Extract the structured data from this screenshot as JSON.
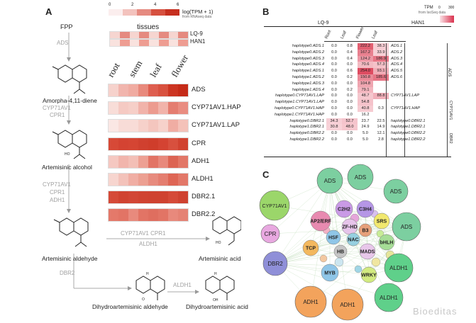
{
  "panel_a": {
    "letter": "A",
    "legend": {
      "ticks": [
        "0",
        "2",
        "4",
        "6"
      ],
      "title": "log(TPM + 1)",
      "subtitle": "from RNAseq data",
      "colors": [
        "#fbeeee",
        "#f3c2bd",
        "#e58a80",
        "#d6503f",
        "#c62f1f"
      ]
    },
    "tissues_title": "tissues",
    "tissues": [
      "root",
      "stem",
      "leaf",
      "flower"
    ],
    "species_rows": [
      {
        "name": "LQ-9",
        "colors": [
          "#f6d5d0",
          "#e58a80",
          "#f6d5d0",
          "#e58a80",
          "#f6d5d0",
          "#e58a80",
          "#f6d5d0",
          "#e58a80"
        ]
      },
      {
        "name": "HAN1",
        "colors": [
          "#f9e2de",
          "#ee9d92",
          "#f9e2de",
          "#ee9d92",
          "#f9e2de",
          "#ee9d92",
          "#f9e2de",
          "#ee9d92"
        ]
      }
    ],
    "genes": [
      {
        "name": "ADS",
        "colors": [
          "#f6d2cc",
          "#f1b5ad",
          "#f0aba1",
          "#e8897c",
          "#de5e4f",
          "#d8513f",
          "#cc3522",
          "#c52b18"
        ]
      },
      {
        "name": "CYP71AV1.HAP",
        "colors": [
          "#f8ddd8",
          "#f5cac3",
          "#f6cfc8",
          "#f1b3aa",
          "#ec9b8f",
          "#f1b3aa",
          "#e47d70",
          "#e98d81"
        ]
      },
      {
        "name": "CYP71AV1.LAP",
        "colors": [
          "#fae7e4",
          "#f8dcd7",
          "#f8dcd7",
          "#f6d1ca",
          "#f4c6be",
          "#f6d1ca",
          "#f0ada3",
          "#f4c2b9"
        ]
      },
      {
        "name": "CPR",
        "colors": [
          "#d74937",
          "#d44332",
          "#d54533",
          "#d0402f",
          "#cf3d2b",
          "#d44332",
          "#d8503e",
          "#d14230"
        ]
      },
      {
        "name": "ADH1",
        "colors": [
          "#f5c8c1",
          "#f1b5ac",
          "#f3bfb6",
          "#eda093",
          "#e27465",
          "#e8897c",
          "#dc6453",
          "#e27767"
        ]
      },
      {
        "name": "ALDH1",
        "colors": [
          "#f7d5cf",
          "#f3c2ba",
          "#f0aea4",
          "#eca092",
          "#e78b7e",
          "#e47e70",
          "#de6655",
          "#e27869"
        ]
      },
      {
        "name": "DBR2.1",
        "colors": [
          "#d54a38",
          "#d04331",
          "#d24635",
          "#d04331",
          "#cf4230",
          "#cf4230",
          "#d54a38",
          "#cf4230"
        ]
      },
      {
        "name": "DBR2.2",
        "colors": [
          "#e4796a",
          "#e27465",
          "#e88a7d",
          "#e27465",
          "#df6e5f",
          "#e27465",
          "#e8897c",
          "#e58274"
        ]
      }
    ],
    "pathway": {
      "fpp": "FPP",
      "ads": "ADS",
      "amorpha": "Amorpha-4,11-diene",
      "cyp1": "CYP71AV1",
      "cpr1": "CPR1",
      "artemisinic_alcohol": "Artemisinic alcohol",
      "cyp2": "CYP71AV1",
      "cpr2": "CPR1",
      "adh1": "ADH1",
      "artemisinic_aldehyde": "Artemisinic aldehyde",
      "side_enz1": "CYP71AV1   CPR1",
      "side_enz2": "ALDH1",
      "artemisinic_acid": "Artemisinic acid",
      "dbr2": "DBR2",
      "dihydro_aldehyde": "Dihydroartemisinic aldehyde",
      "aldh1": "ALDH1",
      "dihydro_acid": "Dihydroartemisinic acid",
      "struct_labels": {
        "h": "H",
        "o": "O",
        "oh": "OH",
        "ho": "HO"
      }
    }
  },
  "panel_b": {
    "letter": "B",
    "legend": {
      "title": "TPM",
      "subtitle": "from IsoSeq data",
      "min": "0",
      "max": "300"
    },
    "groups": [
      "LQ-9",
      "HAN1"
    ],
    "columns": [
      "Root",
      "Leaf",
      "Flower",
      "Leaf"
    ],
    "rows": [
      {
        "name": "haplotype0.ADS.1",
        "values": [
          "0.0",
          "0.8",
          "222.2",
          "38.3"
        ],
        "tag": "ADS.1"
      },
      {
        "name": "haplotype0.ADS.2",
        "values": [
          "0.0",
          "0.4",
          "167.2",
          "33.9"
        ],
        "tag": "ADS.2"
      },
      {
        "name": "haplotype0.ADS.3",
        "values": [
          "0.0",
          "0.4",
          "124.2",
          "186.9"
        ],
        "tag": "ADS.3"
      },
      {
        "name": "haplotype0.ADS.4",
        "values": [
          "0.0",
          "0.0",
          "70.6",
          "57.3"
        ],
        "tag": "ADS.4"
      },
      {
        "name": "haplotype1.ADS.1",
        "values": [
          "0.0",
          "0.6",
          "254.0",
          "93.1"
        ],
        "tag": "ADS.5"
      },
      {
        "name": "haplotype1.ADS.2",
        "values": [
          "0.0",
          "0.2",
          "150.8",
          "185.6"
        ],
        "tag": "ADS.6"
      },
      {
        "name": "haplotype1.ADS.3",
        "values": [
          "0.0",
          "0.0",
          "104.8",
          ""
        ],
        "tag": ""
      },
      {
        "name": "haplotype1.ADS.4",
        "values": [
          "0.0",
          "0.2",
          "79.1",
          ""
        ],
        "tag": ""
      },
      {
        "name": "haplotype0.CYP71AV1.LAP",
        "values": [
          "0.0",
          "0.0",
          "48.7",
          "88.8"
        ],
        "tag": "CYP71AV1.LAP"
      },
      {
        "name": "haplotype1.CYP71AV1.LAP",
        "values": [
          "0.0",
          "0.0",
          "54.8",
          ""
        ],
        "tag": ""
      },
      {
        "name": "haplotype0.CYP71AV1.HAP",
        "values": [
          "0.0",
          "0.0",
          "40.8",
          "0.3"
        ],
        "tag": "CYP71AV1.HAP"
      },
      {
        "name": "haplotype1.CYP71AV1.HAP",
        "values": [
          "0.0",
          "0.0",
          "16.2",
          ""
        ],
        "tag": ""
      },
      {
        "name": "haplotype0.DBR2.1",
        "values": [
          "34.3",
          "52.7",
          "23.7",
          "22.5"
        ],
        "tag": "haplotype0.DBR2.1"
      },
      {
        "name": "haplotype1.DBR2.1",
        "values": [
          "30.8",
          "48.0",
          "24.9",
          "14.9"
        ],
        "tag": "haplotype1.DBR2.1"
      },
      {
        "name": "haplotype0.DBR2.2",
        "values": [
          "0.0",
          "0.0",
          "5.0",
          "12.1"
        ],
        "tag": "haplotype0.DBR2.2"
      },
      {
        "name": "haplotype1.DBR2.2",
        "values": [
          "0.0",
          "0.0",
          "5.0",
          "2.8"
        ],
        "tag": "haplotype1.DBR2.2"
      }
    ],
    "side_groups": [
      "ADS",
      "CYP71AV1",
      "DBR2"
    ]
  },
  "panel_c": {
    "letter": "C",
    "outer_nodes": [
      {
        "label": "ADS",
        "color": "#7ccfa0"
      },
      {
        "label": "ADS",
        "color": "#7ccfa0"
      },
      {
        "label": "ADS",
        "color": "#7ccfa0"
      },
      {
        "label": "ADS",
        "color": "#7ccfa0"
      },
      {
        "label": "CYP71AV1",
        "color": "#9bd66a"
      },
      {
        "label": "CPR",
        "color": "#e8a8e0"
      },
      {
        "label": "DBR2",
        "color": "#8f8fd8"
      },
      {
        "label": "ADH1",
        "color": "#f3a35c"
      },
      {
        "label": "ADH1",
        "color": "#f3a35c"
      },
      {
        "label": "ALDH1",
        "color": "#5fd08a"
      },
      {
        "label": "ALDH1",
        "color": "#5fd08a"
      }
    ],
    "inner_labels": [
      "C2H2",
      "C3H4",
      "AP2/ERF",
      "ZF-HD",
      "SRS",
      "B3",
      "HSF",
      "NAC",
      "bHLH",
      "TCP",
      "HB",
      "MADS",
      "MYB",
      "WRKY"
    ]
  },
  "watermark": "Bioeditas"
}
